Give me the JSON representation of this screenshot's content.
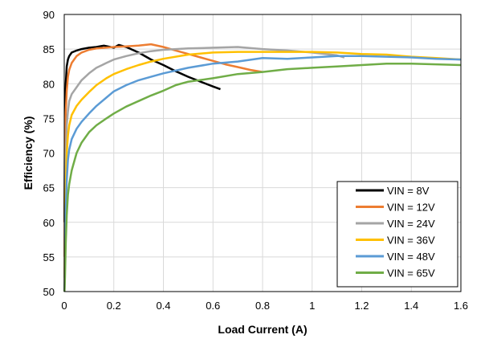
{
  "chart_data": {
    "type": "line",
    "xlabel": "Load Current (A)",
    "ylabel": "Efficiency (%)",
    "xlim": [
      0,
      1.6
    ],
    "ylim": [
      50,
      90
    ],
    "x_ticks": [
      0,
      0.2,
      0.4,
      0.6,
      0.8,
      1,
      1.2,
      1.4,
      1.6
    ],
    "x_tick_labels": [
      "0",
      "0.2",
      "0.4",
      "0.6",
      "0.8",
      "1",
      "1.2",
      "1.4",
      "1.6"
    ],
    "y_ticks": [
      50,
      55,
      60,
      65,
      70,
      75,
      80,
      85,
      90
    ],
    "y_tick_labels": [
      "50",
      "55",
      "60",
      "65",
      "70",
      "75",
      "80",
      "85",
      "90"
    ],
    "grid": true,
    "legend_position": "bottom-right",
    "series": [
      {
        "name": "VIN = 8V",
        "color": "#000000",
        "points": [
          [
            0.001,
            60
          ],
          [
            0.003,
            75
          ],
          [
            0.006,
            80
          ],
          [
            0.01,
            82.5
          ],
          [
            0.015,
            83.5
          ],
          [
            0.02,
            84
          ],
          [
            0.03,
            84.5
          ],
          [
            0.05,
            84.8
          ],
          [
            0.07,
            85.0
          ],
          [
            0.1,
            85.2
          ],
          [
            0.13,
            85.3
          ],
          [
            0.16,
            85.5
          ],
          [
            0.2,
            85.2
          ],
          [
            0.22,
            85.6
          ],
          [
            0.25,
            85.3
          ],
          [
            0.3,
            84.5
          ],
          [
            0.35,
            83.5
          ],
          [
            0.4,
            82.7
          ],
          [
            0.45,
            81.8
          ],
          [
            0.5,
            81.0
          ],
          [
            0.55,
            80.3
          ],
          [
            0.6,
            79.6
          ],
          [
            0.63,
            79.2
          ]
        ]
      },
      {
        "name": "VIN = 12V",
        "color": "#ED7D31",
        "points": [
          [
            0.001,
            55
          ],
          [
            0.003,
            70
          ],
          [
            0.006,
            76
          ],
          [
            0.01,
            79
          ],
          [
            0.015,
            81
          ],
          [
            0.02,
            82
          ],
          [
            0.03,
            83
          ],
          [
            0.05,
            84
          ],
          [
            0.07,
            84.5
          ],
          [
            0.1,
            84.9
          ],
          [
            0.13,
            85.1
          ],
          [
            0.2,
            85.3
          ],
          [
            0.25,
            85.4
          ],
          [
            0.3,
            85.5
          ],
          [
            0.35,
            85.7
          ],
          [
            0.4,
            85.3
          ],
          [
            0.45,
            84.8
          ],
          [
            0.5,
            84.3
          ],
          [
            0.55,
            83.8
          ],
          [
            0.6,
            83.3
          ],
          [
            0.65,
            82.8
          ],
          [
            0.7,
            82.4
          ],
          [
            0.75,
            82.0
          ],
          [
            0.8,
            81.7
          ]
        ]
      },
      {
        "name": "VIN = 24V",
        "color": "#A5A5A5",
        "points": [
          [
            0.001,
            52
          ],
          [
            0.003,
            62
          ],
          [
            0.006,
            70
          ],
          [
            0.01,
            74
          ],
          [
            0.015,
            76
          ],
          [
            0.02,
            77.5
          ],
          [
            0.03,
            78.5
          ],
          [
            0.05,
            79.5
          ],
          [
            0.07,
            80.5
          ],
          [
            0.1,
            81.5
          ],
          [
            0.13,
            82.3
          ],
          [
            0.17,
            83.0
          ],
          [
            0.2,
            83.5
          ],
          [
            0.25,
            84.0
          ],
          [
            0.3,
            84.4
          ],
          [
            0.35,
            84.7
          ],
          [
            0.4,
            84.9
          ],
          [
            0.5,
            85.1
          ],
          [
            0.6,
            85.2
          ],
          [
            0.7,
            85.3
          ],
          [
            0.8,
            85.0
          ],
          [
            0.9,
            84.8
          ],
          [
            1.0,
            84.5
          ],
          [
            1.1,
            84.1
          ],
          [
            1.13,
            83.8
          ]
        ]
      },
      {
        "name": "VIN = 36V",
        "color": "#FFC000",
        "points": [
          [
            0.001,
            50
          ],
          [
            0.003,
            58
          ],
          [
            0.006,
            65
          ],
          [
            0.01,
            70
          ],
          [
            0.015,
            72.5
          ],
          [
            0.02,
            74
          ],
          [
            0.03,
            75.5
          ],
          [
            0.05,
            76.8
          ],
          [
            0.07,
            77.7
          ],
          [
            0.1,
            78.8
          ],
          [
            0.13,
            79.8
          ],
          [
            0.17,
            80.8
          ],
          [
            0.2,
            81.4
          ],
          [
            0.25,
            82.1
          ],
          [
            0.3,
            82.7
          ],
          [
            0.35,
            83.2
          ],
          [
            0.4,
            83.6
          ],
          [
            0.5,
            84.2
          ],
          [
            0.6,
            84.5
          ],
          [
            0.7,
            84.6
          ],
          [
            0.8,
            84.6
          ],
          [
            0.9,
            84.6
          ],
          [
            1.0,
            84.6
          ],
          [
            1.1,
            84.5
          ],
          [
            1.2,
            84.3
          ],
          [
            1.3,
            84.2
          ],
          [
            1.4,
            83.9
          ],
          [
            1.5,
            83.7
          ],
          [
            1.6,
            83.5
          ]
        ]
      },
      {
        "name": "VIN = 48V",
        "color": "#5B9BD5",
        "points": [
          [
            0.001,
            50
          ],
          [
            0.003,
            55
          ],
          [
            0.006,
            62
          ],
          [
            0.01,
            66
          ],
          [
            0.015,
            69
          ],
          [
            0.02,
            70.5
          ],
          [
            0.03,
            72
          ],
          [
            0.05,
            73.5
          ],
          [
            0.07,
            74.5
          ],
          [
            0.1,
            75.7
          ],
          [
            0.13,
            76.8
          ],
          [
            0.17,
            78.0
          ],
          [
            0.2,
            78.9
          ],
          [
            0.25,
            79.8
          ],
          [
            0.3,
            80.5
          ],
          [
            0.35,
            81.0
          ],
          [
            0.4,
            81.5
          ],
          [
            0.5,
            82.3
          ],
          [
            0.6,
            82.9
          ],
          [
            0.7,
            83.2
          ],
          [
            0.8,
            83.7
          ],
          [
            0.9,
            83.6
          ],
          [
            1.0,
            83.8
          ],
          [
            1.1,
            84.0
          ],
          [
            1.2,
            84.0
          ],
          [
            1.3,
            83.9
          ],
          [
            1.4,
            83.8
          ],
          [
            1.5,
            83.6
          ],
          [
            1.6,
            83.5
          ]
        ]
      },
      {
        "name": "VIN = 65V",
        "color": "#70AD47",
        "points": [
          [
            0.001,
            50
          ],
          [
            0.003,
            52
          ],
          [
            0.006,
            57
          ],
          [
            0.01,
            61
          ],
          [
            0.015,
            64
          ],
          [
            0.02,
            65.5
          ],
          [
            0.03,
            67.5
          ],
          [
            0.05,
            70
          ],
          [
            0.07,
            71.5
          ],
          [
            0.1,
            73
          ],
          [
            0.13,
            74
          ],
          [
            0.17,
            75
          ],
          [
            0.2,
            75.7
          ],
          [
            0.25,
            76.7
          ],
          [
            0.3,
            77.5
          ],
          [
            0.35,
            78.3
          ],
          [
            0.4,
            79.0
          ],
          [
            0.45,
            79.8
          ],
          [
            0.5,
            80.3
          ],
          [
            0.6,
            80.8
          ],
          [
            0.7,
            81.4
          ],
          [
            0.8,
            81.7
          ],
          [
            0.9,
            82.1
          ],
          [
            1.0,
            82.3
          ],
          [
            1.1,
            82.5
          ],
          [
            1.2,
            82.7
          ],
          [
            1.3,
            82.9
          ],
          [
            1.4,
            82.9
          ],
          [
            1.5,
            82.8
          ],
          [
            1.6,
            82.7
          ]
        ]
      }
    ]
  }
}
